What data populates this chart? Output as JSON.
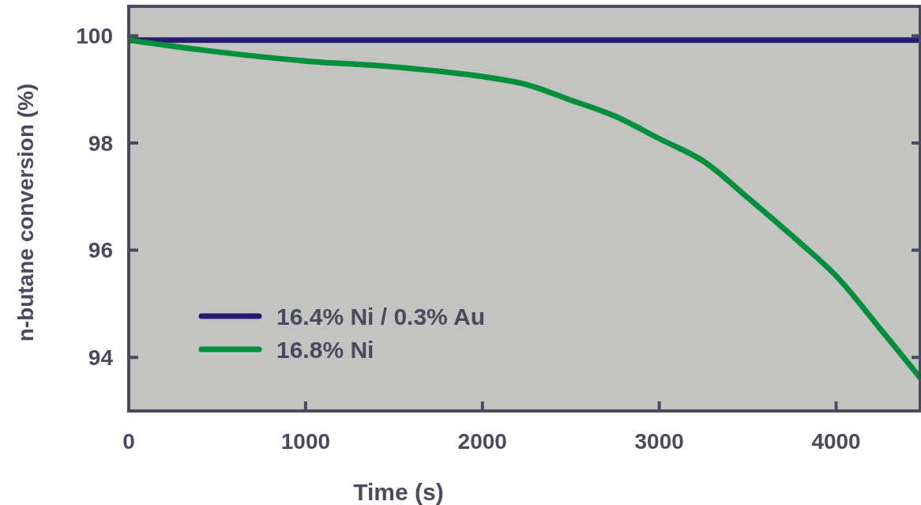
{
  "chart_data": {
    "type": "line",
    "xlabel": "Time (s)",
    "ylabel": "n-butane conversion (%)",
    "xlim": [
      0,
      4480
    ],
    "xticks": [
      0,
      1000,
      2000,
      3000,
      4000
    ],
    "ylim": [
      93,
      100.55
    ],
    "yticks": [
      94,
      96,
      98,
      100
    ],
    "grid": false,
    "legend": "bottom left",
    "marker": "none",
    "line_style": "solid",
    "series": [
      {
        "name": "16.4% Ni / 0.3% Au",
        "color": "#241a6e",
        "x": [
          0,
          4480
        ],
        "values": [
          99.92,
          99.92
        ]
      },
      {
        "name": "16.8% Ni",
        "color": "#008f3b",
        "x": [
          0,
          500,
          1000,
          1500,
          2000,
          2250,
          2500,
          2750,
          3000,
          3250,
          3500,
          3750,
          4000,
          4250,
          4480
        ],
        "values": [
          99.92,
          99.7,
          99.53,
          99.42,
          99.24,
          99.09,
          98.8,
          98.5,
          98.08,
          97.66,
          96.98,
          96.27,
          95.52,
          94.53,
          93.6
        ]
      }
    ]
  }
}
